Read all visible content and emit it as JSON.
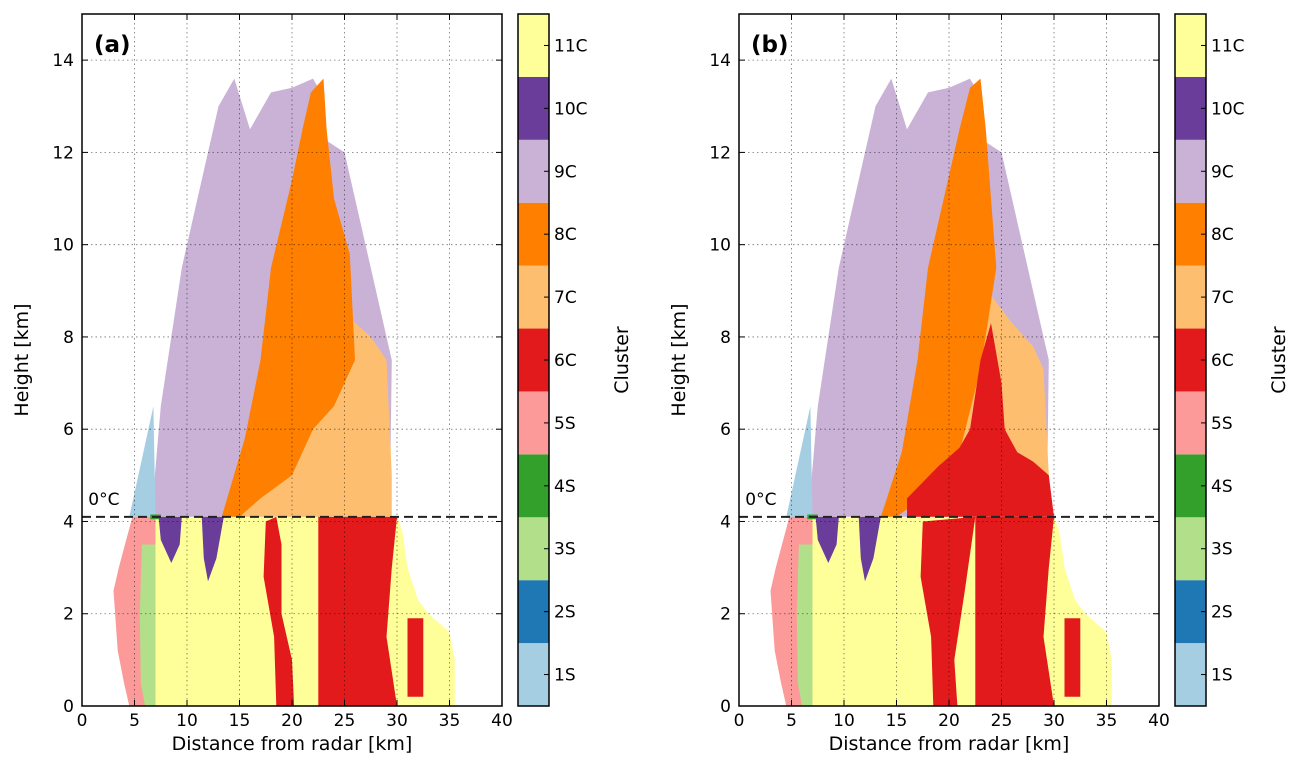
{
  "chart_data": [
    {
      "panel_label": "(a)",
      "type": "heatmap",
      "xlabel": "Distance from radar [km]",
      "ylabel": "Height [km]",
      "xlim": [
        0,
        40
      ],
      "ylim": [
        0,
        15
      ],
      "xticks": [
        0,
        5,
        10,
        15,
        20,
        25,
        30,
        35,
        40
      ],
      "yticks": [
        0,
        2,
        4,
        6,
        8,
        10,
        12,
        14
      ],
      "grid": true,
      "freezing_level": {
        "height": 4.1,
        "label": "0°C"
      },
      "colorbar_label": "Cluster",
      "classes": [
        "1S",
        "2S",
        "3S",
        "4S",
        "5S",
        "6C",
        "7C",
        "8C",
        "9C",
        "10C",
        "11C"
      ],
      "colors": {
        "1S": "#a6cee3",
        "2S": "#1f78b4",
        "3S": "#b2df8a",
        "4S": "#33a02c",
        "5S": "#fb9a99",
        "6C": "#e31a1c",
        "7C": "#fdbf6f",
        "8C": "#ff7f00",
        "9C": "#cab2d6",
        "10C": "#6a3d9a",
        "11C": "#ffff99"
      },
      "regions": [
        {
          "class": "9C",
          "points": [
            [
              6.6,
              4.1
            ],
            [
              7.5,
              6.5
            ],
            [
              9.5,
              9.5
            ],
            [
              11,
              11
            ],
            [
              12,
              12
            ],
            [
              13,
              13
            ],
            [
              14.5,
              13.6
            ],
            [
              16,
              12.5
            ],
            [
              18,
              13.3
            ],
            [
              20,
              13.4
            ],
            [
              22,
              13.6
            ],
            [
              22.5,
              13.4
            ],
            [
              23,
              12.3
            ],
            [
              25,
              12
            ],
            [
              26,
              11
            ],
            [
              27,
              10
            ],
            [
              28,
              9
            ],
            [
              29,
              8
            ],
            [
              29.5,
              7.5
            ],
            [
              29.3,
              4.1
            ]
          ]
        },
        {
          "class": "1S",
          "points": [
            [
              4.5,
              4.1
            ],
            [
              6.8,
              6.5
            ],
            [
              7.0,
              4.1
            ]
          ]
        },
        {
          "class": "7C",
          "points": [
            [
              15,
              4.1
            ],
            [
              16,
              5.5
            ],
            [
              17.5,
              7.8
            ],
            [
              19,
              8.3
            ],
            [
              21,
              9
            ],
            [
              22.5,
              9.2
            ],
            [
              24,
              8.8
            ],
            [
              26,
              8.3
            ],
            [
              27.5,
              8
            ],
            [
              29,
              7.5
            ],
            [
              29.5,
              5
            ],
            [
              29.5,
              4.1
            ]
          ]
        },
        {
          "class": "8C",
          "points": [
            [
              13.3,
              4.1
            ],
            [
              15.5,
              5.8
            ],
            [
              17,
              7.5
            ],
            [
              18,
              9.5
            ],
            [
              20,
              11.4
            ],
            [
              21,
              12.5
            ],
            [
              21.8,
              13.3
            ],
            [
              23,
              13.6
            ],
            [
              23.3,
              12.5
            ],
            [
              24,
              11
            ],
            [
              25.5,
              9.8
            ],
            [
              26,
              7.5
            ],
            [
              24,
              6.5
            ],
            [
              22,
              6
            ],
            [
              20,
              5
            ],
            [
              17,
              4.5
            ],
            [
              15,
              4.1
            ]
          ]
        },
        {
          "class": "11C",
          "points": [
            [
              6.8,
              0
            ],
            [
              6.8,
              4.1
            ],
            [
              30,
              4.1
            ],
            [
              30.5,
              3.8
            ],
            [
              31,
              3
            ],
            [
              32,
              2.3
            ],
            [
              33,
              2
            ],
            [
              34,
              1.8
            ],
            [
              35,
              1.6
            ],
            [
              35.5,
              1
            ],
            [
              35.5,
              0
            ]
          ]
        },
        {
          "class": "5S",
          "points": [
            [
              4.8,
              4.1
            ],
            [
              3.5,
              3
            ],
            [
              3.0,
              2.5
            ],
            [
              3.4,
              1.2
            ],
            [
              4.0,
              0.5
            ],
            [
              4.5,
              0
            ],
            [
              7,
              0
            ],
            [
              7,
              4.1
            ]
          ]
        },
        {
          "class": "3S",
          "points": [
            [
              5.7,
              3.5
            ],
            [
              5.5,
              2
            ],
            [
              5.6,
              0.5
            ],
            [
              6,
              0
            ],
            [
              7,
              0
            ],
            [
              7,
              3.5
            ]
          ]
        },
        {
          "class": "4S",
          "points": [
            [
              6.5,
              4.05
            ],
            [
              7.5,
              4.05
            ],
            [
              7.5,
              4.15
            ],
            [
              6.5,
              4.15
            ]
          ]
        },
        {
          "class": "10C",
          "points": [
            [
              7.3,
              4.1
            ],
            [
              9.5,
              4.1
            ],
            [
              9.3,
              3.5
            ],
            [
              8.5,
              3.1
            ],
            [
              7.5,
              3.6
            ]
          ]
        },
        {
          "class": "10C",
          "points": [
            [
              11.4,
              4.1
            ],
            [
              13.5,
              4.1
            ],
            [
              12.8,
              3.2
            ],
            [
              12,
              2.7
            ],
            [
              11.6,
              3.2
            ]
          ]
        },
        {
          "class": "6C",
          "points": [
            [
              17.5,
              4.0
            ],
            [
              18.5,
              4.1
            ],
            [
              19,
              3.5
            ],
            [
              19,
              2
            ],
            [
              20,
              1
            ],
            [
              20.2,
              0
            ],
            [
              18.5,
              0
            ],
            [
              18.3,
              1.5
            ],
            [
              17.3,
              2.8
            ]
          ]
        },
        {
          "class": "6C",
          "points": [
            [
              22.5,
              4.1
            ],
            [
              30,
              4.1
            ],
            [
              29.5,
              3
            ],
            [
              29,
              1.5
            ],
            [
              30,
              0
            ],
            [
              22.5,
              0
            ]
          ]
        },
        {
          "class": "6C",
          "points": [
            [
              31,
              1.9
            ],
            [
              32.5,
              1.9
            ],
            [
              32.5,
              0.2
            ],
            [
              31,
              0.2
            ]
          ]
        }
      ]
    },
    {
      "panel_label": "(b)",
      "type": "heatmap",
      "xlabel": "Distance from radar [km]",
      "ylabel": "Height [km]",
      "xlim": [
        0,
        40
      ],
      "ylim": [
        0,
        15
      ],
      "xticks": [
        0,
        5,
        10,
        15,
        20,
        25,
        30,
        35,
        40
      ],
      "yticks": [
        0,
        2,
        4,
        6,
        8,
        10,
        12,
        14
      ],
      "grid": true,
      "freezing_level": {
        "height": 4.1,
        "label": "0°C"
      },
      "colorbar_label": "Cluster",
      "classes": [
        "1S",
        "2S",
        "3S",
        "4S",
        "5S",
        "6C",
        "7C",
        "8C",
        "9C",
        "10C",
        "11C"
      ],
      "colors": {
        "1S": "#a6cee3",
        "2S": "#1f78b4",
        "3S": "#b2df8a",
        "4S": "#33a02c",
        "5S": "#fb9a99",
        "6C": "#e31a1c",
        "7C": "#fdbf6f",
        "8C": "#ff7f00",
        "9C": "#cab2d6",
        "10C": "#6a3d9a",
        "11C": "#ffff99"
      },
      "regions": [
        {
          "class": "9C",
          "points": [
            [
              6.6,
              4.1
            ],
            [
              7.5,
              6.5
            ],
            [
              9.5,
              9.5
            ],
            [
              11,
              11
            ],
            [
              12,
              12
            ],
            [
              13,
              13
            ],
            [
              14.5,
              13.6
            ],
            [
              16,
              12.5
            ],
            [
              18,
              13.3
            ],
            [
              20,
              13.4
            ],
            [
              22,
              13.6
            ],
            [
              22.5,
              13.4
            ],
            [
              23,
              12.3
            ],
            [
              25,
              12
            ],
            [
              26,
              11
            ],
            [
              27,
              10
            ],
            [
              28,
              9
            ],
            [
              29,
              8
            ],
            [
              29.5,
              7.5
            ],
            [
              29.3,
              4.1
            ]
          ]
        },
        {
          "class": "1S",
          "points": [
            [
              4.5,
              4.1
            ],
            [
              6.8,
              6.5
            ],
            [
              7.0,
              4.1
            ]
          ]
        },
        {
          "class": "7C",
          "points": [
            [
              17,
              4.5
            ],
            [
              18,
              7
            ],
            [
              20,
              8.8
            ],
            [
              22,
              9.2
            ],
            [
              24,
              8.9
            ],
            [
              26,
              8.3
            ],
            [
              28,
              7.8
            ],
            [
              29,
              7.3
            ],
            [
              29.5,
              5
            ],
            [
              29,
              4.1
            ]
          ]
        },
        {
          "class": "8C",
          "points": [
            [
              13.5,
              4.1
            ],
            [
              15.5,
              5.5
            ],
            [
              17,
              7.5
            ],
            [
              18,
              9.5
            ],
            [
              20,
              11.5
            ],
            [
              21,
              12.5
            ],
            [
              22,
              13.4
            ],
            [
              23,
              13.6
            ],
            [
              23.5,
              12.5
            ],
            [
              24,
              11
            ],
            [
              24.5,
              9.5
            ],
            [
              23,
              7.3
            ],
            [
              21,
              5.5
            ],
            [
              18,
              4.6
            ],
            [
              15,
              4.1
            ]
          ]
        },
        {
          "class": "6C",
          "points": [
            [
              16,
              4.5
            ],
            [
              19,
              5.2
            ],
            [
              21,
              5.6
            ],
            [
              22,
              6
            ],
            [
              23,
              7.5
            ],
            [
              24,
              8.3
            ],
            [
              25,
              7
            ],
            [
              25.3,
              6
            ],
            [
              26.5,
              5.5
            ],
            [
              28,
              5.3
            ],
            [
              29.5,
              5
            ],
            [
              30,
              4.1
            ],
            [
              16,
              4.1
            ]
          ]
        },
        {
          "class": "11C",
          "points": [
            [
              6.8,
              0
            ],
            [
              6.8,
              4.1
            ],
            [
              30,
              4.1
            ],
            [
              30.5,
              3.8
            ],
            [
              31,
              3
            ],
            [
              32,
              2.3
            ],
            [
              33,
              2
            ],
            [
              34,
              1.8
            ],
            [
              35,
              1.6
            ],
            [
              35.5,
              1
            ],
            [
              35.5,
              0
            ]
          ]
        },
        {
          "class": "5S",
          "points": [
            [
              4.8,
              4.1
            ],
            [
              3.5,
              3
            ],
            [
              3.0,
              2.5
            ],
            [
              3.4,
              1.2
            ],
            [
              4.0,
              0.5
            ],
            [
              4.5,
              0
            ],
            [
              7,
              0
            ],
            [
              7,
              4.1
            ]
          ]
        },
        {
          "class": "3S",
          "points": [
            [
              5.7,
              3.5
            ],
            [
              5.5,
              2
            ],
            [
              5.6,
              0.5
            ],
            [
              6,
              0
            ],
            [
              7,
              0
            ],
            [
              7,
              3.5
            ]
          ]
        },
        {
          "class": "4S",
          "points": [
            [
              6.5,
              4.05
            ],
            [
              7.5,
              4.05
            ],
            [
              7.5,
              4.15
            ],
            [
              6.5,
              4.15
            ]
          ]
        },
        {
          "class": "10C",
          "points": [
            [
              7.3,
              4.1
            ],
            [
              9.5,
              4.1
            ],
            [
              9.3,
              3.5
            ],
            [
              8.5,
              3.1
            ],
            [
              7.5,
              3.6
            ]
          ]
        },
        {
          "class": "10C",
          "points": [
            [
              11.4,
              4.1
            ],
            [
              13.5,
              4.1
            ],
            [
              12.8,
              3.2
            ],
            [
              12,
              2.7
            ],
            [
              11.6,
              3.2
            ]
          ]
        },
        {
          "class": "6C",
          "points": [
            [
              17.5,
              4.0
            ],
            [
              22.5,
              4.1
            ],
            [
              21.5,
              2.5
            ],
            [
              20.5,
              1
            ],
            [
              20.8,
              0
            ],
            [
              18.5,
              0
            ],
            [
              18.3,
              1.5
            ],
            [
              17.3,
              2.8
            ]
          ]
        },
        {
          "class": "6C",
          "points": [
            [
              22.5,
              4.1
            ],
            [
              30,
              4.1
            ],
            [
              29.5,
              3
            ],
            [
              29,
              1.5
            ],
            [
              30,
              0
            ],
            [
              22.5,
              0
            ]
          ]
        },
        {
          "class": "6C",
          "points": [
            [
              31,
              1.9
            ],
            [
              32.5,
              1.9
            ],
            [
              32.5,
              0.2
            ],
            [
              31,
              0.2
            ]
          ]
        }
      ]
    }
  ]
}
